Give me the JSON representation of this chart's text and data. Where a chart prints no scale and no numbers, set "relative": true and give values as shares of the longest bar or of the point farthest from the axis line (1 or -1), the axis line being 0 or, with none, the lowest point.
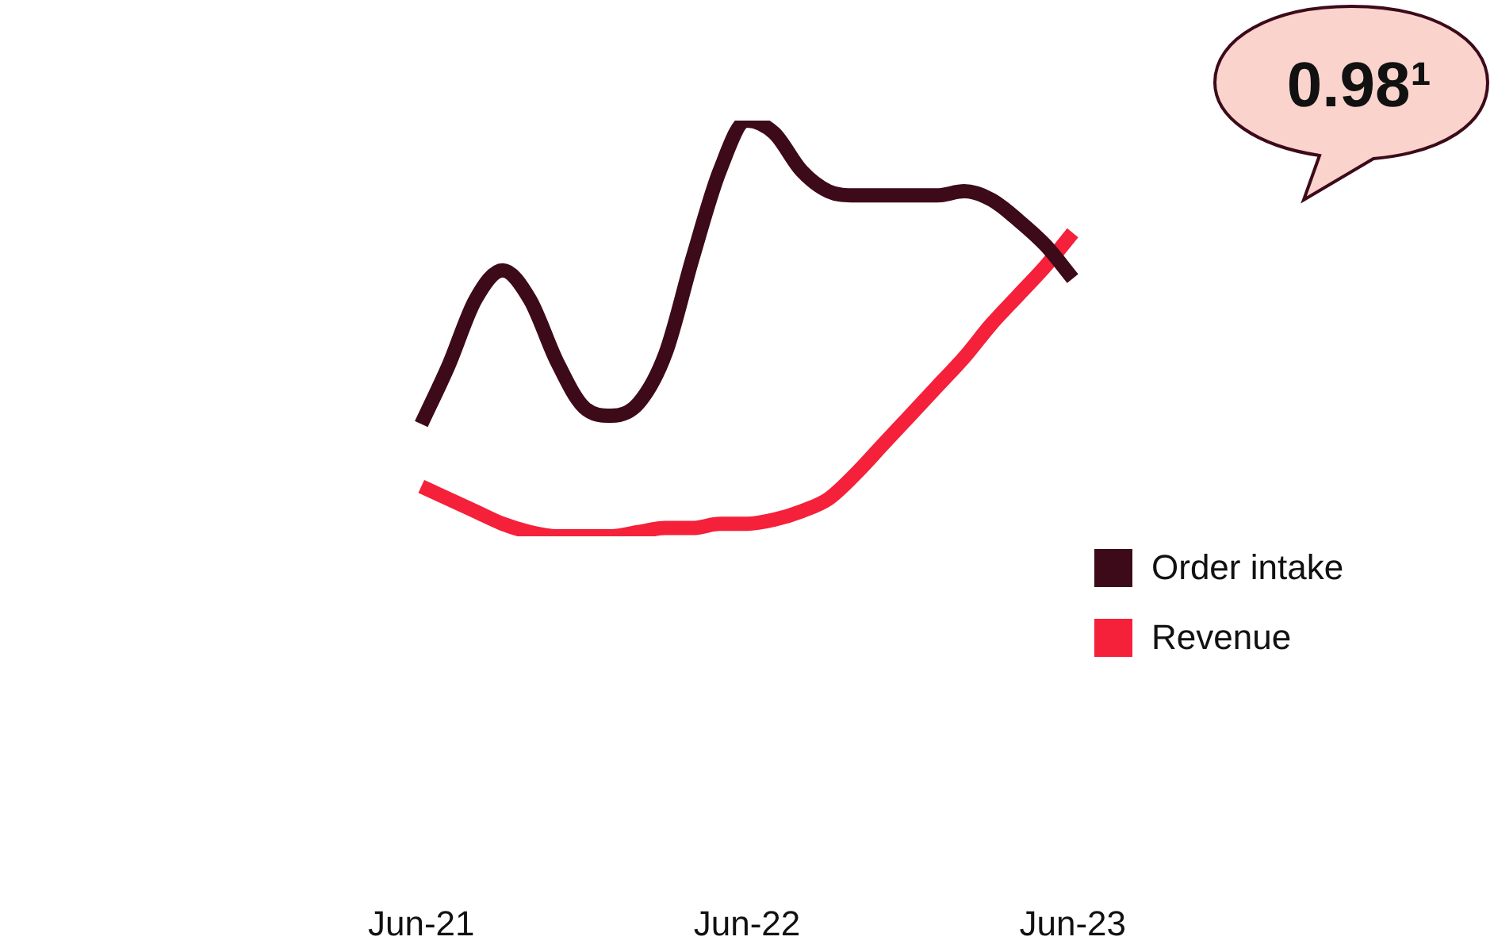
{
  "chart_data": {
    "type": "line",
    "relative": true,
    "legend": "right",
    "categories": [
      "Jun-21",
      null,
      null,
      null,
      null,
      null,
      null,
      null,
      null,
      null,
      null,
      null,
      "Jun-22",
      null,
      null,
      null,
      null,
      null,
      null,
      null,
      null,
      null,
      null,
      null,
      "Jun-23"
    ],
    "series": [
      {
        "name": "Order intake",
        "color": "#3d0a1a",
        "values": [
          0.27,
          0.41,
          0.57,
          0.64,
          0.57,
          0.42,
          0.31,
          0.29,
          0.32,
          0.44,
          0.67,
          0.88,
          1,
          0.97,
          0.88,
          0.83,
          0.82,
          0.82,
          0.82,
          0.82,
          0.83,
          0.81,
          0.76,
          0.7,
          0.62
        ]
      },
      {
        "name": "Revenue",
        "color": "#f5203a",
        "values": [
          0.12,
          0.09,
          0.06,
          0.03,
          0.01,
          0,
          0,
          0,
          0.01,
          0.02,
          0.02,
          0.03,
          0.03,
          0.04,
          0.06,
          0.09,
          0.15,
          0.22,
          0.29,
          0.36,
          0.43,
          0.51,
          0.58,
          0.65,
          0.73
        ]
      }
    ],
    "annotations": [
      "0.98¹"
    ]
  }
}
